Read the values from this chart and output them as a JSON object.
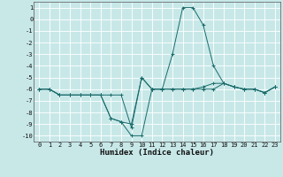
{
  "x": [
    0,
    1,
    2,
    3,
    4,
    5,
    6,
    7,
    8,
    9,
    10,
    11,
    12,
    13,
    14,
    15,
    16,
    17,
    18,
    19,
    20,
    21,
    22,
    23
  ],
  "lines": [
    [
      -6,
      -6,
      -6.5,
      -6.5,
      -6.5,
      -6.5,
      -6.5,
      -8.5,
      -8.8,
      -9.0,
      -5.0,
      -6.0,
      -6.0,
      -3.0,
      1.0,
      1.0,
      -0.5,
      -4.0,
      -5.5,
      -5.8,
      -6.0,
      -6.0,
      -6.3,
      -5.8
    ],
    [
      -6,
      -6,
      -6.5,
      -6.5,
      -6.5,
      -6.5,
      -6.5,
      -8.5,
      -8.8,
      -10.0,
      -10.0,
      -6.0,
      -6.0,
      -6.0,
      -6.0,
      -6.0,
      -6.0,
      -6.0,
      -5.5,
      -5.8,
      -6.0,
      -6.0,
      -6.3,
      -5.8
    ],
    [
      -6,
      -6,
      -6.5,
      -6.5,
      -6.5,
      -6.5,
      -6.5,
      -6.5,
      -6.5,
      -9.3,
      -5.0,
      -6.0,
      -6.0,
      -6.0,
      -6.0,
      -6.0,
      -5.8,
      -5.5,
      -5.5,
      -5.8,
      -6.0,
      -6.0,
      -6.3,
      -5.8
    ]
  ],
  "line_color": "#1a6b6b",
  "marker": "+",
  "marker_size": 3,
  "bg_color": "#c8e8e8",
  "grid_color": "#ffffff",
  "xlabel": "Humidex (Indice chaleur)",
  "ylim": [
    -10.5,
    1.5
  ],
  "xlim": [
    -0.5,
    23.5
  ],
  "yticks": [
    1,
    0,
    -1,
    -2,
    -3,
    -4,
    -5,
    -6,
    -7,
    -8,
    -9,
    -10
  ],
  "xticks": [
    0,
    1,
    2,
    3,
    4,
    5,
    6,
    7,
    8,
    9,
    10,
    11,
    12,
    13,
    14,
    15,
    16,
    17,
    18,
    19,
    20,
    21,
    22,
    23
  ]
}
